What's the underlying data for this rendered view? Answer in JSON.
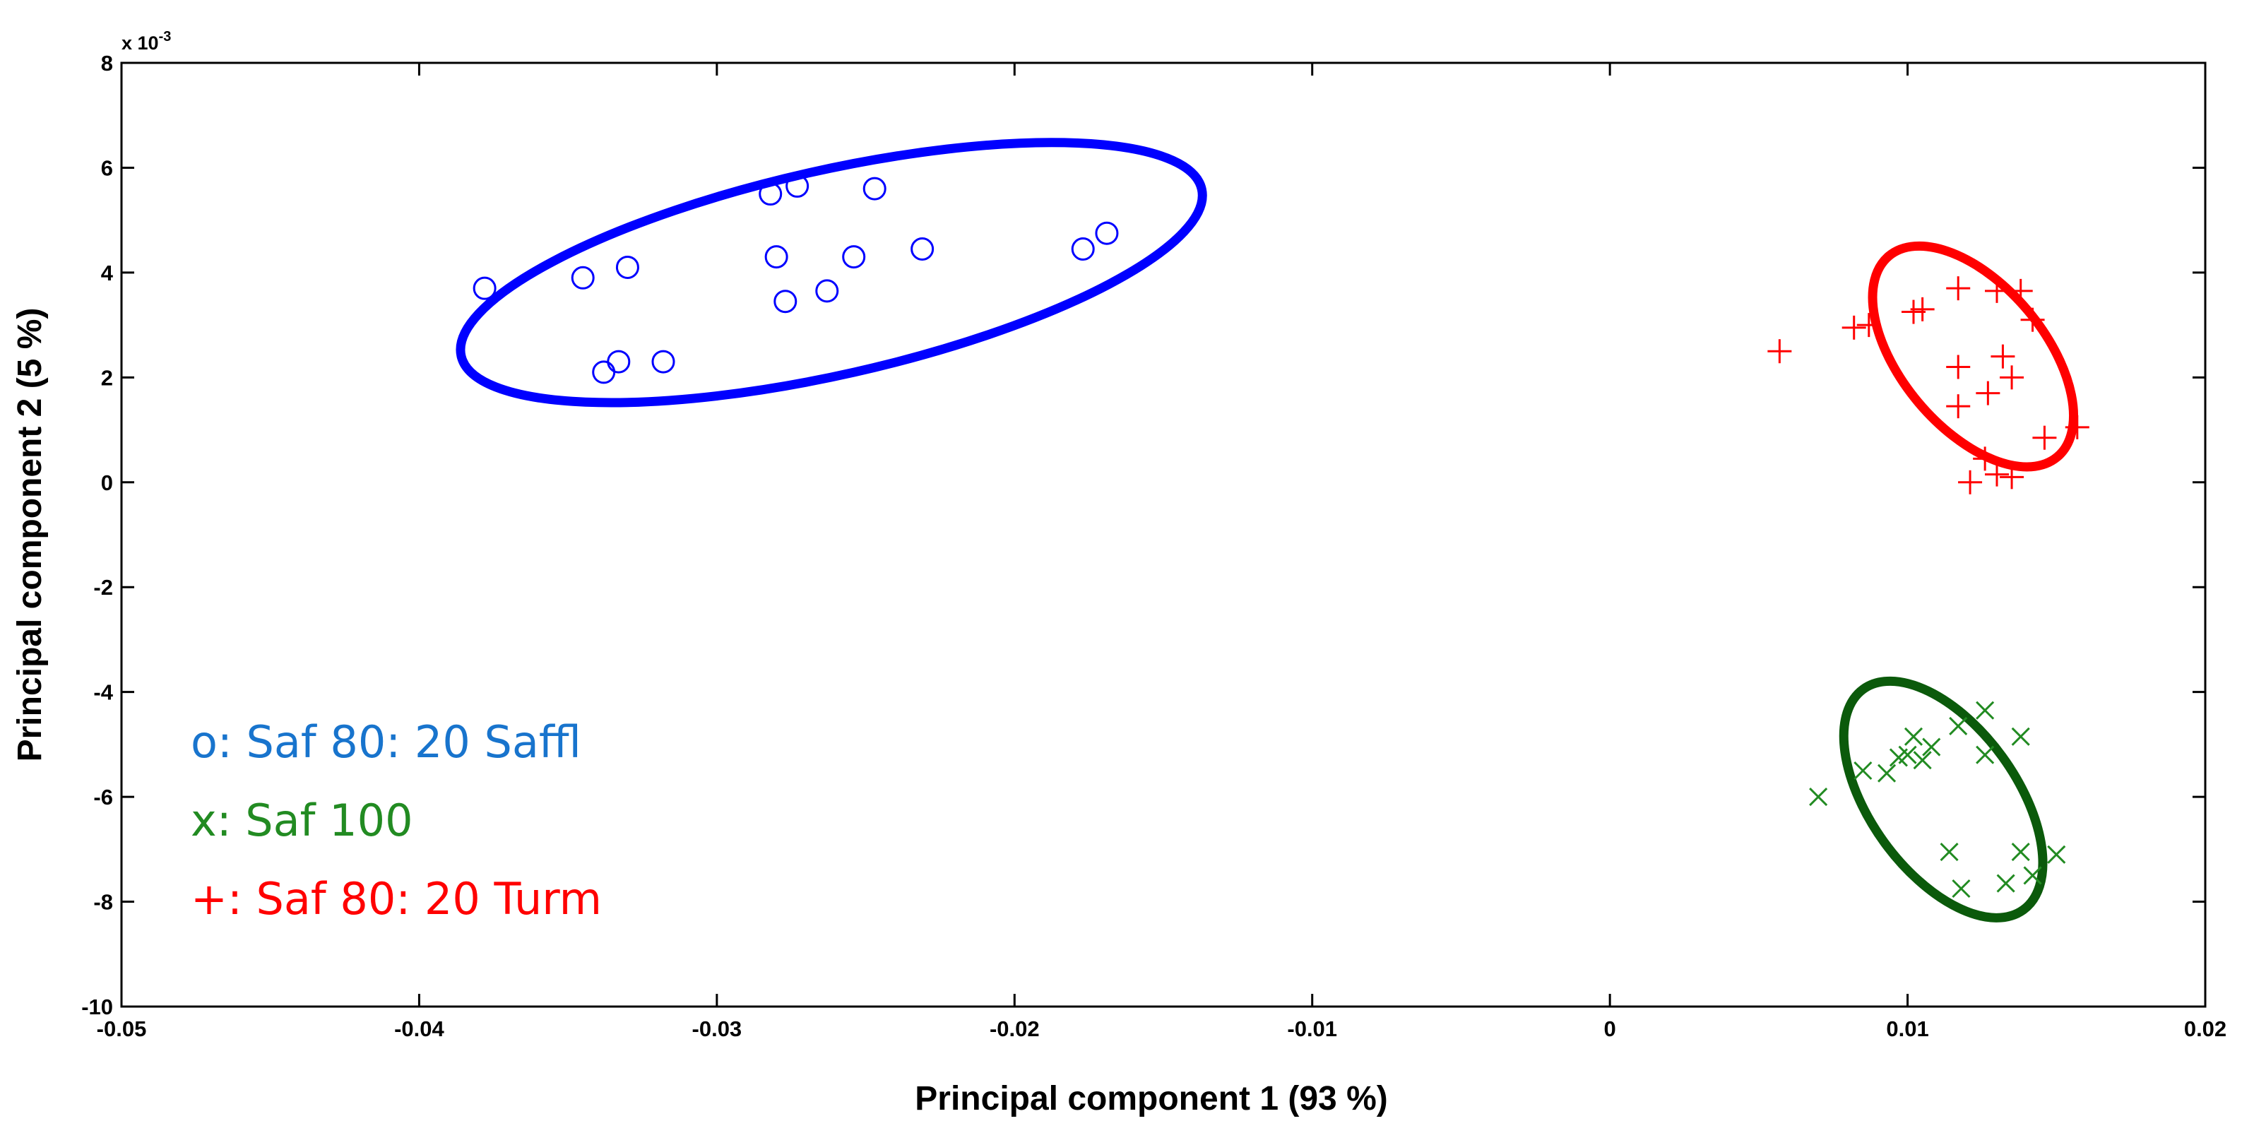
{
  "chart_data": {
    "type": "scatter",
    "title": "",
    "xlabel": "Principal component 1 (93 %)",
    "ylabel": "Principal component 2 (5 %)",
    "y_exponent_label": "x 10",
    "y_exponent_power": "-3",
    "xlim": [
      -0.05,
      0.02
    ],
    "ylim": [
      -10,
      8
    ],
    "x_ticks": [
      -0.05,
      -0.04,
      -0.03,
      -0.02,
      -0.01,
      0,
      0.01,
      0.02
    ],
    "x_tick_labels": [
      "-0.05",
      "-0.04",
      "-0.03",
      "-0.02",
      "-0.01",
      "0",
      "0.01",
      "0.02"
    ],
    "y_ticks": [
      8,
      6,
      4,
      2,
      0,
      -2,
      -4,
      -6,
      -8,
      -10
    ],
    "y_tick_labels": [
      "8",
      "6",
      "4",
      "2",
      "0",
      "-2",
      "-4",
      "-6",
      "-8",
      "-10"
    ],
    "grid": false,
    "legend_position": "bottom-left",
    "legend": [
      {
        "text": "o: Saf 80: 20 Saffl",
        "color": "#1874cd"
      },
      {
        "text": "x: Saf 100",
        "color": "#228b22"
      },
      {
        "text": "+: Saf 80: 20 Turm",
        "color": "#ff0000"
      }
    ],
    "series": [
      {
        "marker": "circle",
        "color": "#0000ff",
        "points": [
          [
            -0.0378,
            3.7
          ],
          [
            -0.0345,
            3.9
          ],
          [
            -0.033,
            4.1
          ],
          [
            -0.0338,
            2.1
          ],
          [
            -0.0333,
            2.3
          ],
          [
            -0.0318,
            2.3
          ],
          [
            -0.0282,
            5.5
          ],
          [
            -0.0273,
            5.65
          ],
          [
            -0.028,
            4.3
          ],
          [
            -0.0277,
            3.45
          ],
          [
            -0.0263,
            3.65
          ],
          [
            -0.0254,
            4.3
          ],
          [
            -0.0247,
            5.6
          ],
          [
            -0.0231,
            4.45
          ],
          [
            -0.0177,
            4.45
          ],
          [
            -0.0169,
            4.75
          ]
        ],
        "ellipse": {
          "center": [
            -0.02615,
            4.0
          ],
          "rx": 0.01275,
          "ry": 1.95,
          "rotation_deg": -12.7
        }
      },
      {
        "marker": "x",
        "color": "#228b22",
        "points": [
          [
            0.007,
            -6.0
          ],
          [
            0.0085,
            -5.5
          ],
          [
            0.0093,
            -5.55
          ],
          [
            0.0097,
            -5.25
          ],
          [
            0.01,
            -5.2
          ],
          [
            0.0102,
            -4.85
          ],
          [
            0.0105,
            -5.3
          ],
          [
            0.0108,
            -5.05
          ],
          [
            0.0117,
            -4.65
          ],
          [
            0.0126,
            -4.35
          ],
          [
            0.0126,
            -5.2
          ],
          [
            0.0138,
            -4.85
          ],
          [
            0.0114,
            -7.05
          ],
          [
            0.0118,
            -7.75
          ],
          [
            0.0133,
            -7.65
          ],
          [
            0.0138,
            -7.05
          ],
          [
            0.0142,
            -7.5
          ],
          [
            0.015,
            -7.1
          ]
        ],
        "ellipse": {
          "center": [
            0.0112,
            -6.05
          ],
          "rx": 0.00245,
          "ry": 2.6,
          "rotation_deg": -36
        }
      },
      {
        "marker": "plus",
        "color": "#ff0000",
        "points": [
          [
            0.0057,
            2.5
          ],
          [
            0.0082,
            2.95
          ],
          [
            0.0087,
            3.0
          ],
          [
            0.0102,
            3.25
          ],
          [
            0.0105,
            3.3
          ],
          [
            0.0117,
            3.7
          ],
          [
            0.013,
            3.65
          ],
          [
            0.0138,
            3.65
          ],
          [
            0.0142,
            3.1
          ],
          [
            0.0117,
            2.2
          ],
          [
            0.0132,
            2.4
          ],
          [
            0.0135,
            2.0
          ],
          [
            0.0127,
            1.7
          ],
          [
            0.0117,
            1.45
          ],
          [
            0.0157,
            1.05
          ],
          [
            0.0146,
            0.85
          ],
          [
            0.0126,
            0.45
          ],
          [
            0.013,
            0.15
          ],
          [
            0.0135,
            0.1
          ],
          [
            0.0121,
            0.0
          ]
        ],
        "ellipse": {
          "center": [
            0.0122,
            2.4
          ],
          "rx": 0.0024,
          "ry": 2.5,
          "rotation_deg": -40
        }
      }
    ]
  }
}
